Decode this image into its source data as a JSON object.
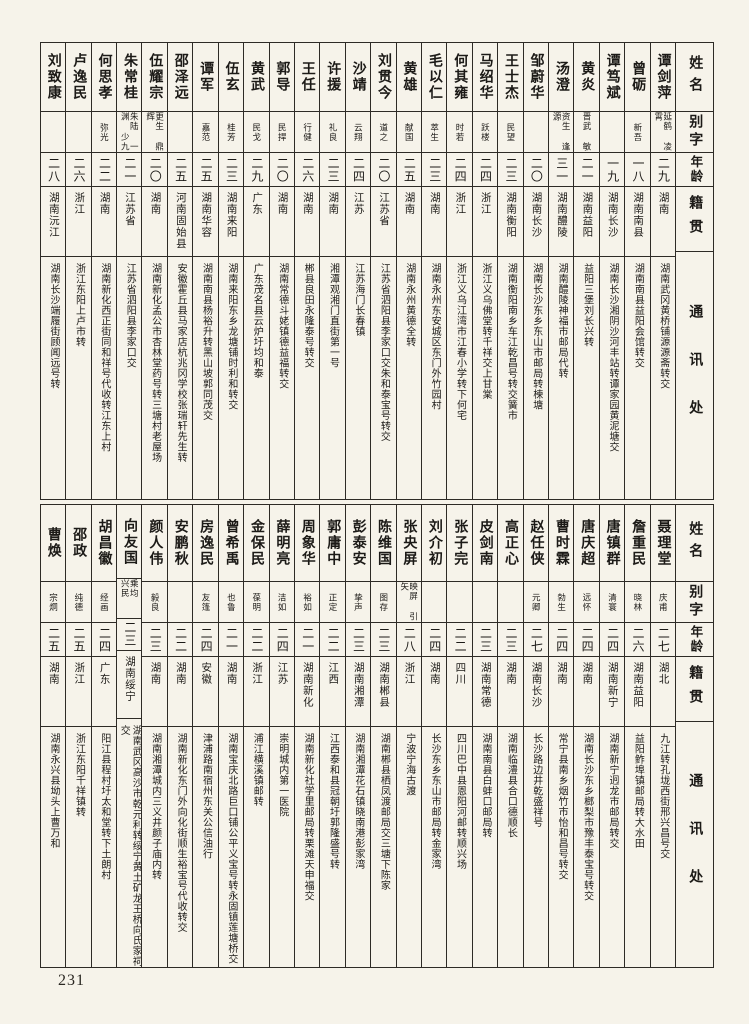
{
  "page": {
    "number": "231"
  },
  "headers": {
    "name": "姓名",
    "zi": "别字",
    "age": "年龄",
    "native": "籍贯",
    "contact": "通讯处"
  },
  "top_persons": [
    {
      "name": "谭剑萍",
      "zi": "延鹤 凌霄",
      "age": "二九",
      "native": "湖南",
      "contact": "湖南武冈黄桥铺源源斋转交"
    },
    {
      "name": "曾砺",
      "zi": "新吾",
      "age": "一八",
      "native": "湖南南县",
      "contact": "湖南南县益阳会馆转交"
    },
    {
      "name": "谭笃斌",
      "zi": "",
      "age": "一九",
      "native": "湖南长沙",
      "contact": "湖南长沙湘阴沙河丰站转谭家园黄泥塘交"
    },
    {
      "name": "黄炎",
      "zi": "晋武 敏",
      "age": "二一",
      "native": "湖南益阳",
      "contact": "益阳三堡刘长兴转"
    },
    {
      "name": "汤澄",
      "zi": "资生 逢源",
      "age": "三一",
      "native": "湖南醴陵",
      "contact": "湖南醴陵神福市邮局代转"
    },
    {
      "name": "邹蔚华",
      "zi": "",
      "age": "二〇",
      "native": "湖南长沙",
      "contact": "湖南长沙东乡东山市邮局转楝塘"
    },
    {
      "name": "王士杰",
      "zi": "民望",
      "age": "二三",
      "native": "湖南衡阳",
      "contact": "湖南衡阳南乡车江乾昌号转交簧市"
    },
    {
      "name": "马绍华",
      "zi": "跃楼",
      "age": "二四",
      "native": "浙江",
      "contact": "浙江义乌佛堂转千祥交上甘棠"
    },
    {
      "name": "何其雍",
      "zi": "时若",
      "age": "二四",
      "native": "浙江",
      "contact": "浙江义乌江湾市江春小学转下何宅"
    },
    {
      "name": "毛以仁",
      "zi": "萃生",
      "age": "二三",
      "native": "湖南",
      "contact": "湖南永州东安城区东门外竹园村"
    },
    {
      "name": "黄雄",
      "zi": "献国",
      "age": "二五",
      "native": "湖南",
      "contact": "湖南永州黄德全转"
    },
    {
      "name": "刘贯今",
      "zi": "道之",
      "age": "二〇",
      "native": "江苏省",
      "contact": "江苏省泗阳县李家口交朱和泰宝号转交"
    },
    {
      "name": "沙靖",
      "zi": "云翔",
      "age": "二四",
      "native": "江苏",
      "contact": "江苏海门长春镇"
    },
    {
      "name": "许援",
      "zi": "礼良",
      "age": "二三",
      "native": "湖南",
      "contact": "湘潭观湘门直街第一号"
    },
    {
      "name": "王任",
      "zi": "行健",
      "age": "二六",
      "native": "湖南",
      "contact": "郴县良田永隆泰号转交"
    },
    {
      "name": "郭导",
      "zi": "民捍",
      "age": "二〇",
      "native": "湖南",
      "contact": "湖南常德斗姥镇德益福转交"
    },
    {
      "name": "黄武",
      "zi": "民戈",
      "age": "二九",
      "native": "广东",
      "contact": "广东茂名县云炉圩均和泰"
    },
    {
      "name": "伍玄",
      "zi": "桂芳",
      "age": "二三",
      "native": "湖南来阳",
      "contact": "湖南来阳东乡龙塘铺时利和转交"
    },
    {
      "name": "谭军",
      "zi": "嘉范",
      "age": "二五",
      "native": "湖南华容",
      "contact": "湖南南县杨裕升转黑山坡郭同茂交"
    },
    {
      "name": "邵泽远",
      "zi": "",
      "age": "二五",
      "native": "河南固始县",
      "contact": "安徽霍丘县马家店杭兆冈学校张瑞轩先生转"
    },
    {
      "name": "伍耀宗",
      "zi": "更生 鼎辉",
      "age": "二〇",
      "native": "湖南",
      "contact": "湖南新化孟公市杏林堂药号转三塘村老屋场"
    },
    {
      "name": "朱常桂",
      "zi": "朱陆 一渊 少九",
      "age": "二一",
      "native": "江苏省",
      "contact": "江苏省泗阳县李家口交"
    },
    {
      "name": "何思孝",
      "zi": "弥光",
      "age": "二二",
      "native": "湖南",
      "contact": "湖南新化西正街同和祥号代收转江东上村"
    },
    {
      "name": "卢逸民",
      "zi": "",
      "age": "二六",
      "native": "浙江",
      "contact": "浙江东阳上卢市转"
    },
    {
      "name": "刘致康",
      "zi": "",
      "age": "二八",
      "native": "湖南沅江",
      "contact": "湖南长沙端履街顾闻远号转"
    }
  ],
  "bottom_persons": [
    {
      "name": "聂理堂",
      "zi": "庆甫",
      "age": "二七",
      "native": "湖北",
      "contact": "九江转孔垅西街邢兴昌号交"
    },
    {
      "name": "詹重民",
      "zi": "晓林",
      "age": "二六",
      "native": "湖南益阳",
      "contact": "益阳鲊埠镇邮局转大水田"
    },
    {
      "name": "唐镇群",
      "zi": "清寰",
      "age": "二四",
      "native": "湖南新宁",
      "contact": "湖南新宁迥龙市邮局转交"
    },
    {
      "name": "唐庆超",
      "zi": "远怀",
      "age": "二四",
      "native": "湖南",
      "contact": "湖南长沙东乡榔梨市豫丰泰宝号转交"
    },
    {
      "name": "曹时霖",
      "zi": "勃生",
      "age": "二四",
      "native": "湖南",
      "contact": "常宁县南乡烟竹市怡和昌号转交"
    },
    {
      "name": "赵任侠",
      "zi": "元卿",
      "age": "二七",
      "native": "湖南长沙",
      "contact": "长沙路边井乾盛祥号"
    },
    {
      "name": "高正心",
      "zi": "",
      "age": "二三",
      "native": "湖南",
      "contact": "湖南临澧县合口德顺长"
    },
    {
      "name": "皮剑南",
      "zi": "",
      "age": "二三",
      "native": "湖南常德",
      "contact": "湖南南县白蚌口邮局转"
    },
    {
      "name": "张子完",
      "zi": "",
      "age": "二二",
      "native": "四川",
      "contact": "四川巴中县恩阳河邮转顺兴场"
    },
    {
      "name": "刘介初",
      "zi": "",
      "age": "二四",
      "native": "湖南",
      "contact": "长沙东乡东山市邮局转金家湾"
    },
    {
      "name": "张央屏",
      "zi": "映屏 引矢",
      "age": "二八",
      "native": "浙江",
      "contact": "宁波宁海古渡"
    },
    {
      "name": "陈维国",
      "zi": "图存",
      "age": "二三",
      "native": "湖南郴县",
      "contact": "湖南郴县栖凤渡邮局交三塘下陈家"
    },
    {
      "name": "彭泰安",
      "zi": "挚声",
      "age": "二三",
      "native": "湖南湘潭",
      "contact": "湖南湘潭花石镇晓南港彭家湾"
    },
    {
      "name": "郭庸中",
      "zi": "正定",
      "age": "二二",
      "native": "江西",
      "contact": "江西泰和县冠朝圩郭隆盛号转"
    },
    {
      "name": "周象华",
      "zi": "裕如",
      "age": "二一",
      "native": "湖南新化",
      "contact": "湖南新化社学里邮局转栗滩天申福交"
    },
    {
      "name": "薛明亮",
      "zi": "洁如",
      "age": "二四",
      "native": "江苏",
      "contact": "崇明城内第一医院"
    },
    {
      "name": "金保民",
      "zi": "葆明",
      "age": "二二",
      "native": "浙江",
      "contact": "浦江横溪镇邮转"
    },
    {
      "name": "曾希禹",
      "zi": "也鲁",
      "age": "二一",
      "native": "湖南",
      "contact": "湖南宝庆北路巨口铺公平义宝号转永固镇莲塘桥交"
    },
    {
      "name": "房逸民",
      "zi": "友篷",
      "age": "二四",
      "native": "安徽",
      "contact": "津浦路南宿州东关公信油行"
    },
    {
      "name": "安鹏秋",
      "zi": "",
      "age": "二二",
      "native": "湖南",
      "contact": "湖南新化东门外向化街顺生裕宝号代收转交"
    },
    {
      "name": "颜人伟",
      "zi": "毅良",
      "age": "二三",
      "native": "湖南",
      "contact": "湖南湘潭城内三义井颜子庙内转"
    },
    {
      "name": "向友国",
      "zi": "乘均 兴民",
      "age": "二三",
      "native": "湖南绥宁",
      "contact": "湖南武冈高沙市乾元利转绥宁黄土矿龙王桥向氏家祠交"
    },
    {
      "name": "胡昌徽",
      "zi": "经画",
      "age": "二四",
      "native": "广东",
      "contact": "阳江县程村圩太和堂转下土朗村"
    },
    {
      "name": "邵政",
      "zi": "纯德",
      "age": "二五",
      "native": "浙江",
      "contact": "浙江东阳千祥镇转"
    },
    {
      "name": "曹焕",
      "zi": "宗炯",
      "age": "二五",
      "native": "湖南",
      "contact": "湖南永兴县坳头上曹万和"
    }
  ]
}
